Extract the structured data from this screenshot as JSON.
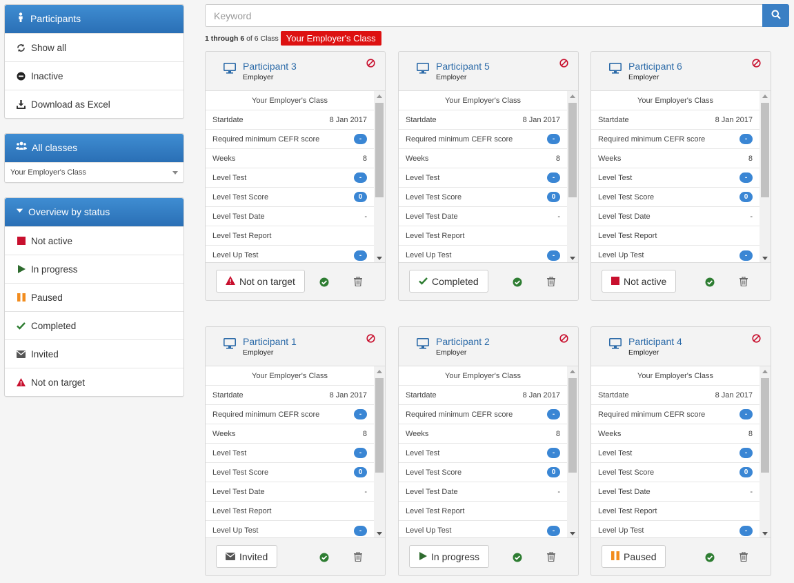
{
  "sidebar": {
    "participants": {
      "title": "Participants",
      "items": [
        "Show all",
        "Inactive",
        "Download as Excel"
      ]
    },
    "classes": {
      "title": "All classes",
      "selected": "Your Employer's Class"
    },
    "overview": {
      "title": "Overview by status",
      "items": [
        "Not active",
        "In progress",
        "Paused",
        "Completed",
        "Invited",
        "Not on target"
      ]
    }
  },
  "search": {
    "placeholder": "Keyword"
  },
  "results": {
    "range": "1 through 6",
    "of": "of 6 Class",
    "badge": "Your Employer's Class"
  },
  "card_labels": {
    "class_name": "Your Employer's Class",
    "startdate": "Startdate",
    "min_cefr": "Required minimum CEFR score",
    "weeks": "Weeks",
    "level_test": "Level Test",
    "level_test_score": "Level Test Score",
    "level_test_date": "Level Test Date",
    "level_test_report": "Level Test Report",
    "level_up_test": "Level Up Test"
  },
  "cards": [
    {
      "name": "Participant 3",
      "role": "Employer",
      "startdate": "8 Jan 2017",
      "cefr": "-",
      "weeks": "8",
      "level_test": "-",
      "score": "0",
      "date": "-",
      "up_test": "-",
      "status": "Not on target",
      "status_icon": "warning-icon"
    },
    {
      "name": "Participant 5",
      "role": "Employer",
      "startdate": "8 Jan 2017",
      "cefr": "-",
      "weeks": "8",
      "level_test": "-",
      "score": "0",
      "date": "-",
      "up_test": "-",
      "status": "Completed",
      "status_icon": "check-icon"
    },
    {
      "name": "Participant 6",
      "role": "Employer",
      "startdate": "8 Jan 2017",
      "cefr": "-",
      "weeks": "8",
      "level_test": "-",
      "score": "0",
      "date": "-",
      "up_test": "-",
      "status": "Not active",
      "status_icon": "stop-icon"
    },
    {
      "name": "Participant 1",
      "role": "Employer",
      "startdate": "8 Jan 2017",
      "cefr": "-",
      "weeks": "8",
      "level_test": "-",
      "score": "0",
      "date": "-",
      "up_test": "-",
      "status": "Invited",
      "status_icon": "envelope-icon"
    },
    {
      "name": "Participant 2",
      "role": "Employer",
      "startdate": "8 Jan 2017",
      "cefr": "-",
      "weeks": "8",
      "level_test": "-",
      "score": "0",
      "date": "-",
      "up_test": "-",
      "status": "In progress",
      "status_icon": "play-icon"
    },
    {
      "name": "Participant 4",
      "role": "Employer",
      "startdate": "8 Jan 2017",
      "cefr": "-",
      "weeks": "8",
      "level_test": "-",
      "score": "0",
      "date": "-",
      "up_test": "-",
      "status": "Paused",
      "status_icon": "pause-icon"
    }
  ],
  "colors": {
    "header_blue": "#2a6fb5",
    "link_blue": "#2b6aa8",
    "danger_red": "#d11",
    "success_green": "#2e7d32",
    "pill_blue": "#3a86d4",
    "pause_orange": "#f28c1e"
  }
}
